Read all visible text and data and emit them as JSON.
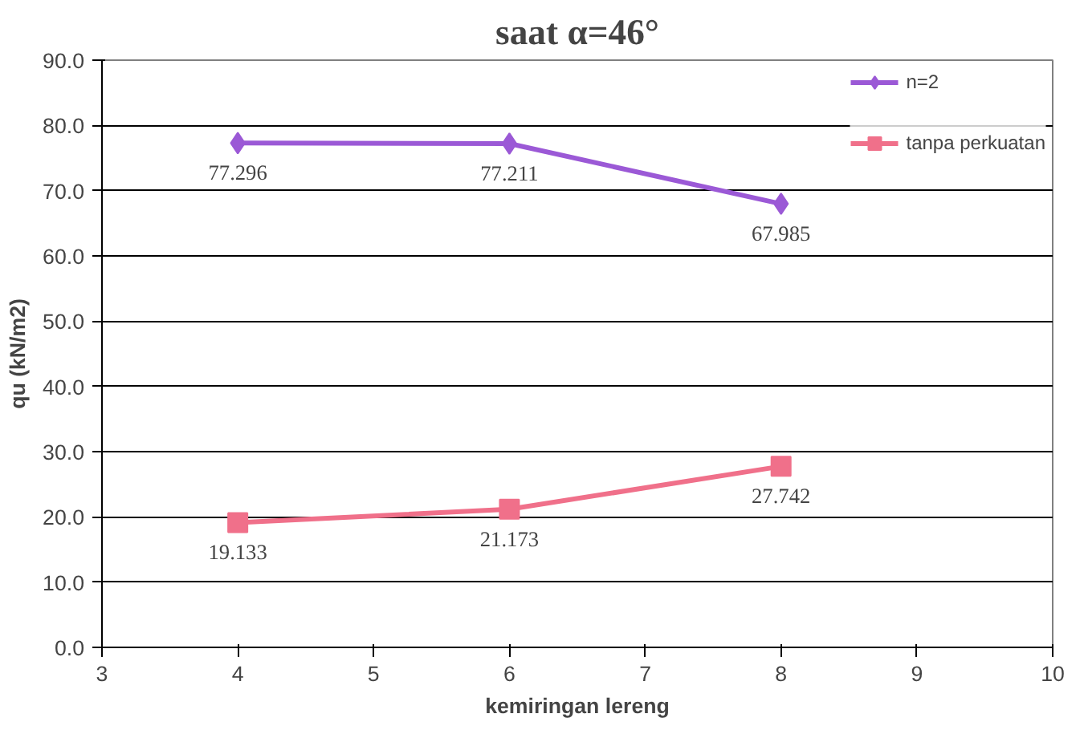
{
  "chart_data": {
    "type": "line",
    "title": "saat α=46°",
    "xlabel": "kemiringan lereng",
    "ylabel": "qu (kN/m2)",
    "x": [
      4,
      6,
      8
    ],
    "series": [
      {
        "name": "n=2",
        "color": "#9b59d6",
        "marker": "diamond",
        "values": [
          77.296,
          77.211,
          67.985
        ]
      },
      {
        "name": "tanpa perkuatan",
        "color": "#f0708a",
        "marker": "square",
        "values": [
          19.133,
          21.173,
          27.742
        ]
      }
    ],
    "xlim": [
      3,
      10
    ],
    "xticks": [
      3,
      4,
      5,
      6,
      7,
      8,
      9,
      10
    ],
    "ylim": [
      0,
      90
    ],
    "yticks": [
      {
        "value": 0,
        "label": "0.0"
      },
      {
        "value": 10,
        "label": "10.0"
      },
      {
        "value": 20,
        "label": "20.0"
      },
      {
        "value": 30,
        "label": "30.0"
      },
      {
        "value": 40,
        "label": "40.0"
      },
      {
        "value": 50,
        "label": "50.0"
      },
      {
        "value": 60,
        "label": "60.0"
      },
      {
        "value": 70,
        "label": "70.0"
      },
      {
        "value": 80,
        "label": "80.0"
      },
      {
        "value": 90,
        "label": "90.0"
      }
    ],
    "grid": "y",
    "legend": "top right",
    "data_labels": true,
    "line_style": "solid"
  }
}
